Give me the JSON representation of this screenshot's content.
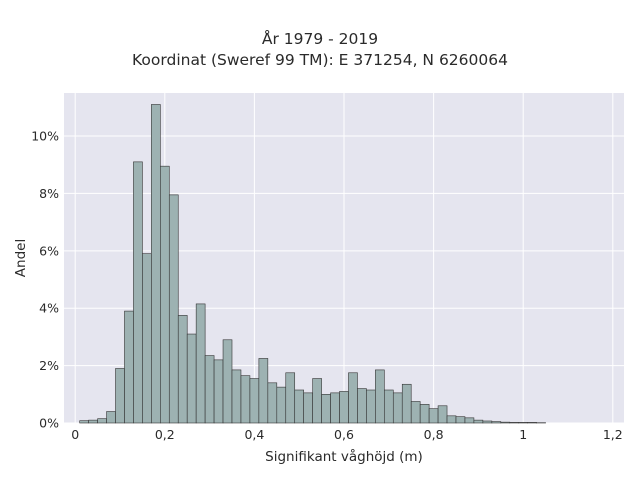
{
  "chart_data": {
    "type": "bar",
    "title": "År 1979 - 2019",
    "subtitle": "Koordinat (Sweref 99 TM): E 371254, N 6260064",
    "xlabel": "Signifikant våghöjd (m)",
    "ylabel": "Andel",
    "xlim": [
      -0.025,
      1.225
    ],
    "ylim": [
      0,
      11.5
    ],
    "x_ticks": [
      0,
      0.2,
      0.4,
      0.6,
      0.8,
      1.0,
      1.2
    ],
    "x_tick_labels": [
      "0",
      "0,2",
      "0,4",
      "0,6",
      "0,8",
      "1",
      "1,2"
    ],
    "y_ticks": [
      0,
      2,
      4,
      6,
      8,
      10
    ],
    "y_tick_labels": [
      "0%",
      "2%",
      "4%",
      "6%",
      "8%",
      "10%"
    ],
    "grid": true,
    "bin_width": 0.02,
    "bin_start": 0.01,
    "values": [
      0.08,
      0.1,
      0.15,
      0.4,
      1.9,
      3.9,
      9.1,
      5.9,
      11.1,
      8.95,
      7.95,
      3.75,
      3.1,
      4.15,
      2.35,
      2.2,
      2.9,
      1.85,
      1.65,
      1.55,
      2.25,
      1.4,
      1.25,
      1.75,
      1.15,
      1.05,
      1.55,
      1.0,
      1.05,
      1.1,
      1.75,
      1.2,
      1.15,
      1.85,
      1.15,
      1.05,
      1.35,
      0.75,
      0.65,
      0.5,
      0.6,
      0.25,
      0.22,
      0.18,
      0.1,
      0.07,
      0.05,
      0.03,
      0.02,
      0.02,
      0.02,
      0.01
    ]
  },
  "colors": {
    "plot_background": "#e5e5ef",
    "grid": "#ffffff",
    "bar_fill": "#9db2b2",
    "bar_edge": "#333333"
  }
}
